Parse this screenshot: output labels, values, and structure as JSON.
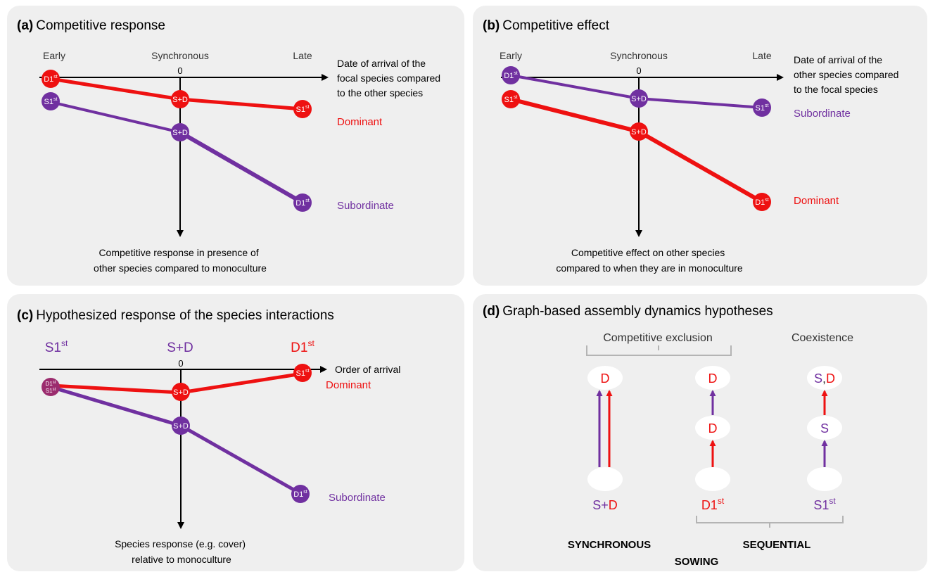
{
  "colors": {
    "dominant": "#ee1111",
    "subordinate": "#7030a0",
    "panel_bg": "#efefef",
    "axis": "#000000",
    "bracket": "#b4b4b4"
  },
  "panel_a": {
    "letter": "(a)",
    "title": "Competitive response",
    "early": "Early",
    "synchronous": "Synchronous",
    "late": "Late",
    "zero": "0",
    "x_axis_label": [
      "Date of arrival of the",
      "focal species compared",
      "to the other species"
    ],
    "y_axis_label": [
      "Competitive response in presence of",
      "other species compared to monoculture"
    ],
    "dominant_label": "Dominant",
    "subordinate_label": "Subordinate",
    "dominant_nodes": [
      {
        "base": "D1",
        "sup": "st"
      },
      {
        "base": "S+D",
        "sup": ""
      },
      {
        "base": "S1",
        "sup": "st"
      }
    ],
    "subordinate_nodes": [
      {
        "base": "S1",
        "sup": "st"
      },
      {
        "base": "S+D",
        "sup": ""
      },
      {
        "base": "D1",
        "sup": "st"
      }
    ]
  },
  "panel_b": {
    "letter": "(b)",
    "title": "Competitive effect",
    "early": "Early",
    "synchronous": "Synchronous",
    "late": "Late",
    "zero": "0",
    "x_axis_label": [
      "Date of arrival of the",
      "other species compared",
      "to the focal species"
    ],
    "y_axis_label": [
      "Competitive effect on other species",
      "compared to when they are in monoculture"
    ],
    "subordinate_label": "Subordinate",
    "dominant_label": "Dominant",
    "subordinate_nodes": [
      {
        "base": "D1",
        "sup": "st"
      },
      {
        "base": "S+D",
        "sup": ""
      },
      {
        "base": "S1",
        "sup": "st"
      }
    ],
    "dominant_nodes": [
      {
        "base": "S1",
        "sup": "st"
      },
      {
        "base": "S+D",
        "sup": ""
      },
      {
        "base": "D1",
        "sup": "st"
      }
    ]
  },
  "panel_c": {
    "letter": "(c)",
    "title": "Hypothesized response of the species interactions",
    "header_left": {
      "base": "S1",
      "sup": "st"
    },
    "header_mid": "S+D",
    "header_right": {
      "base": "D1",
      "sup": "st"
    },
    "zero": "0",
    "x_axis_label": "Order of arrival",
    "y_axis_label": [
      "Species response (e.g. cover)",
      "relative to monoculture"
    ],
    "dominant_label": "Dominant",
    "subordinate_label": "Subordinate",
    "merged_node": [
      {
        "base": "D1",
        "sup": "st"
      },
      {
        "base": "S1",
        "sup": "st"
      }
    ],
    "dominant_nodes": [
      {
        "base": "S+D",
        "sup": ""
      },
      {
        "base": "S1",
        "sup": "st"
      }
    ],
    "subordinate_nodes": [
      {
        "base": "S+D",
        "sup": ""
      },
      {
        "base": "D1",
        "sup": "st"
      }
    ]
  },
  "panel_d": {
    "letter": "(d)",
    "title": "Graph-based assembly dynamics hypotheses",
    "competitive_exclusion": "Competitive exclusion",
    "coexistence": "Coexistence",
    "col1_top": "D",
    "col2_top": "D",
    "col2_mid": "D",
    "col3_top_s": "S",
    "col3_top_sep": ",",
    "col3_top_d": "D",
    "col3_mid": "S",
    "col1_bottom": {
      "s": "S",
      "plus": "+",
      "d": "D"
    },
    "col2_bottom": {
      "base": "D1",
      "sup": "st"
    },
    "col3_bottom": {
      "base": "S1",
      "sup": "st"
    },
    "synchronous": "SYNCHRONOUS",
    "sequential": "SEQUENTIAL",
    "sowing": "SOWING"
  }
}
